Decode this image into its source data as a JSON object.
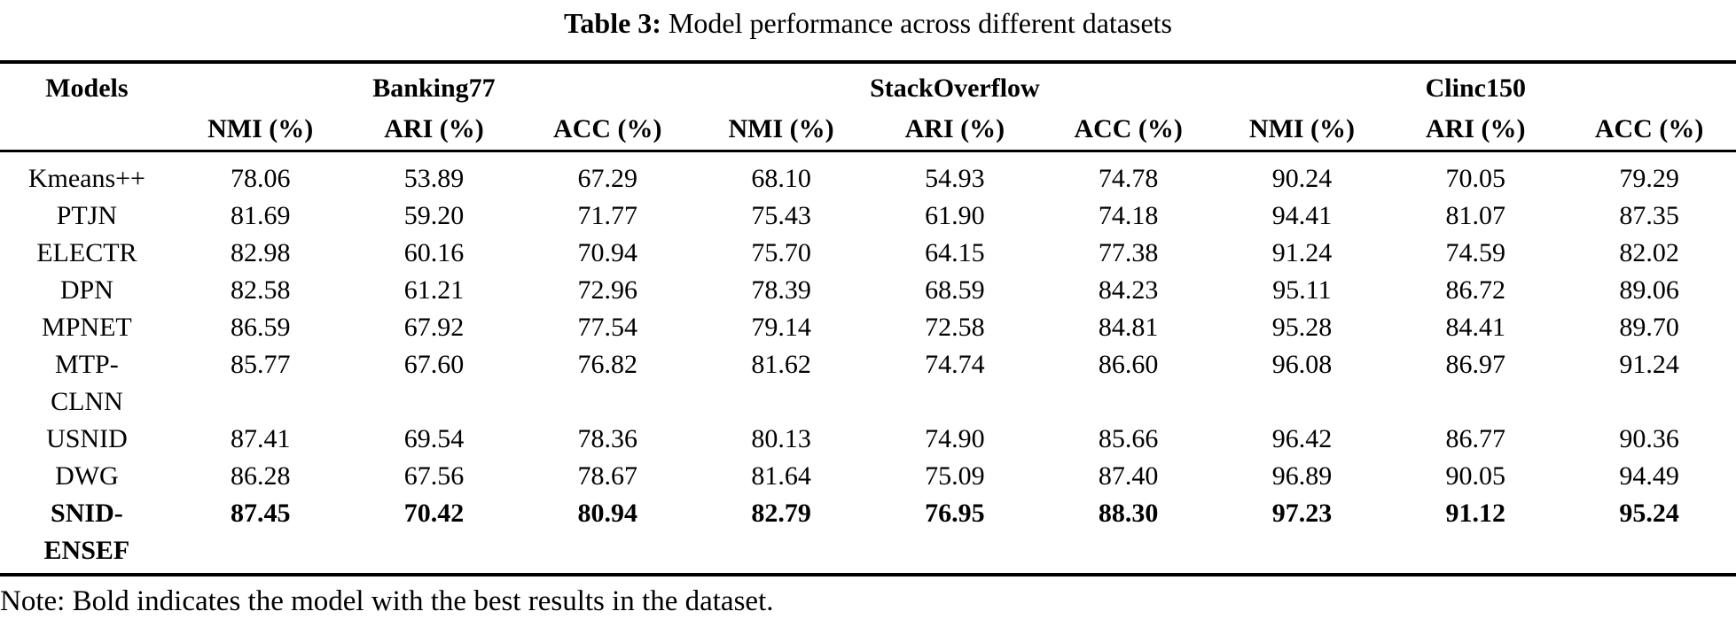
{
  "caption": {
    "label": "Table 3:",
    "text": " Model performance across different datasets"
  },
  "table": {
    "first_column_header": "Models",
    "groups": [
      {
        "label": "Banking77"
      },
      {
        "label": "StackOverflow"
      },
      {
        "label": "Clinc150"
      }
    ],
    "metric_headers": [
      "NMI (%)",
      "ARI (%)",
      "ACC (%)",
      "NMI (%)",
      "ARI (%)",
      "ACC (%)",
      "NMI (%)",
      "ARI (%)",
      "ACC (%)"
    ],
    "rows": [
      {
        "model_lines": [
          "Kmeans++"
        ],
        "bold": false,
        "values": [
          "78.06",
          "53.89",
          "67.29",
          "68.10",
          "54.93",
          "74.78",
          "90.24",
          "70.05",
          "79.29"
        ]
      },
      {
        "model_lines": [
          "PTJN"
        ],
        "bold": false,
        "values": [
          "81.69",
          "59.20",
          "71.77",
          "75.43",
          "61.90",
          "74.18",
          "94.41",
          "81.07",
          "87.35"
        ]
      },
      {
        "model_lines": [
          "ELECTR"
        ],
        "bold": false,
        "values": [
          "82.98",
          "60.16",
          "70.94",
          "75.70",
          "64.15",
          "77.38",
          "91.24",
          "74.59",
          "82.02"
        ]
      },
      {
        "model_lines": [
          "DPN"
        ],
        "bold": false,
        "values": [
          "82.58",
          "61.21",
          "72.96",
          "78.39",
          "68.59",
          "84.23",
          "95.11",
          "86.72",
          "89.06"
        ]
      },
      {
        "model_lines": [
          "MPNET"
        ],
        "bold": false,
        "values": [
          "86.59",
          "67.92",
          "77.54",
          "79.14",
          "72.58",
          "84.81",
          "95.28",
          "84.41",
          "89.70"
        ]
      },
      {
        "model_lines": [
          "MTP-",
          "CLNN"
        ],
        "bold": false,
        "values": [
          "85.77",
          "67.60",
          "76.82",
          "81.62",
          "74.74",
          "86.60",
          "96.08",
          "86.97",
          "91.24"
        ]
      },
      {
        "model_lines": [
          "USNID"
        ],
        "bold": false,
        "values": [
          "87.41",
          "69.54",
          "78.36",
          "80.13",
          "74.90",
          "85.66",
          "96.42",
          "86.77",
          "90.36"
        ]
      },
      {
        "model_lines": [
          "DWG"
        ],
        "bold": false,
        "values": [
          "86.28",
          "67.56",
          "78.67",
          "81.64",
          "75.09",
          "87.40",
          "96.89",
          "90.05",
          "94.49"
        ]
      },
      {
        "model_lines": [
          "SNID-",
          "ENSEF"
        ],
        "bold": true,
        "values": [
          "87.45",
          "70.42",
          "80.94",
          "82.79",
          "76.95",
          "88.30",
          "97.23",
          "91.12",
          "95.24"
        ]
      }
    ]
  },
  "note": "Note: Bold indicates the model with the best results in the dataset."
}
